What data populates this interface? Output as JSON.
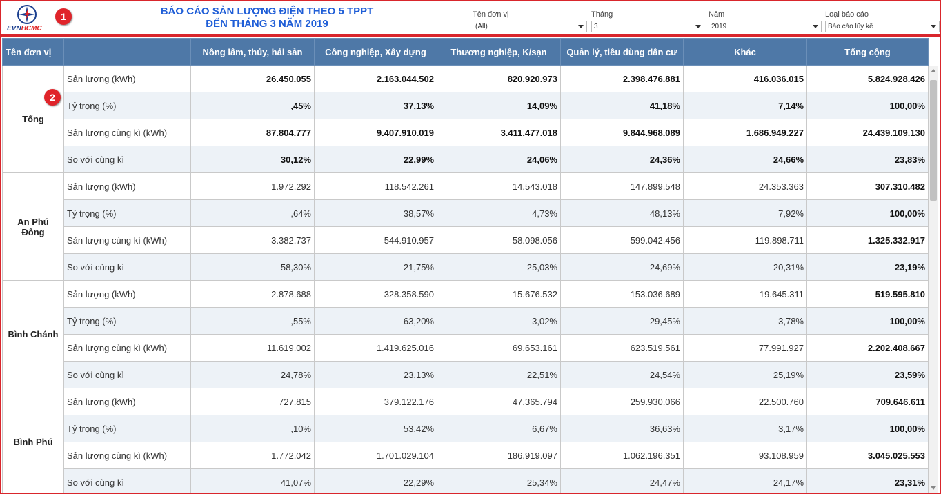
{
  "header": {
    "logo_evn": "EVN",
    "logo_hcmc": "HCMC",
    "title_line1": "BÁO CÁO SẢN LƯỢNG ĐIỆN THEO 5 TPPT",
    "title_line2": "ĐẾN THÁNG 3 NĂM 2019",
    "badge1": "1",
    "badge2": "2"
  },
  "filters": {
    "unit": {
      "label": "Tên đơn vị",
      "value": "(All)"
    },
    "month": {
      "label": "Tháng",
      "value": "3"
    },
    "year": {
      "label": "Năm",
      "value": "2019"
    },
    "report_type": {
      "label": "Loại báo cáo",
      "value": "Báo cáo lũy kế"
    }
  },
  "table": {
    "columns": [
      "Tên đơn vị",
      "",
      "Nông lâm, thủy, hải sản",
      "Công nghiệp, Xây dựng",
      "Thương nghiệp, K/sạn",
      "Quản lý, tiêu dùng dân cư",
      "Khác",
      "Tổng cộng"
    ],
    "metric_labels": [
      "Sản lượng (kWh)",
      "Tỷ trọng (%)",
      "Sản lượng cùng kì (kWh)",
      "So với cùng kì"
    ],
    "groups": [
      {
        "name": "Tổng",
        "rows": [
          [
            "26.450.055",
            "2.163.044.502",
            "820.920.973",
            "2.398.476.881",
            "416.036.015",
            "5.824.928.426"
          ],
          [
            ",45%",
            "37,13%",
            "14,09%",
            "41,18%",
            "7,14%",
            "100,00%"
          ],
          [
            "87.804.777",
            "9.407.910.019",
            "3.411.477.018",
            "9.844.968.089",
            "1.686.949.227",
            "24.439.109.130"
          ],
          [
            "30,12%",
            "22,99%",
            "24,06%",
            "24,36%",
            "24,66%",
            "23,83%"
          ]
        ]
      },
      {
        "name": "An Phú Đông",
        "rows": [
          [
            "1.972.292",
            "118.542.261",
            "14.543.018",
            "147.899.548",
            "24.353.363",
            "307.310.482"
          ],
          [
            ",64%",
            "38,57%",
            "4,73%",
            "48,13%",
            "7,92%",
            "100,00%"
          ],
          [
            "3.382.737",
            "544.910.957",
            "58.098.056",
            "599.042.456",
            "119.898.711",
            "1.325.332.917"
          ],
          [
            "58,30%",
            "21,75%",
            "25,03%",
            "24,69%",
            "20,31%",
            "23,19%"
          ]
        ]
      },
      {
        "name": "Bình Chánh",
        "rows": [
          [
            "2.878.688",
            "328.358.590",
            "15.676.532",
            "153.036.689",
            "19.645.311",
            "519.595.810"
          ],
          [
            ",55%",
            "63,20%",
            "3,02%",
            "29,45%",
            "3,78%",
            "100,00%"
          ],
          [
            "11.619.002",
            "1.419.625.016",
            "69.653.161",
            "623.519.561",
            "77.991.927",
            "2.202.408.667"
          ],
          [
            "24,78%",
            "23,13%",
            "22,51%",
            "24,54%",
            "25,19%",
            "23,59%"
          ]
        ]
      },
      {
        "name": "Bình Phú",
        "rows": [
          [
            "727.815",
            "379.122.176",
            "47.365.794",
            "259.930.066",
            "22.500.760",
            "709.646.611"
          ],
          [
            ",10%",
            "53,42%",
            "6,67%",
            "36,63%",
            "3,17%",
            "100,00%"
          ],
          [
            "1.772.042",
            "1.701.029.104",
            "186.919.097",
            "1.062.196.351",
            "93.108.959",
            "3.045.025.553"
          ],
          [
            "41,07%",
            "22,29%",
            "25,34%",
            "24,47%",
            "24,17%",
            "23,31%"
          ]
        ]
      }
    ]
  }
}
